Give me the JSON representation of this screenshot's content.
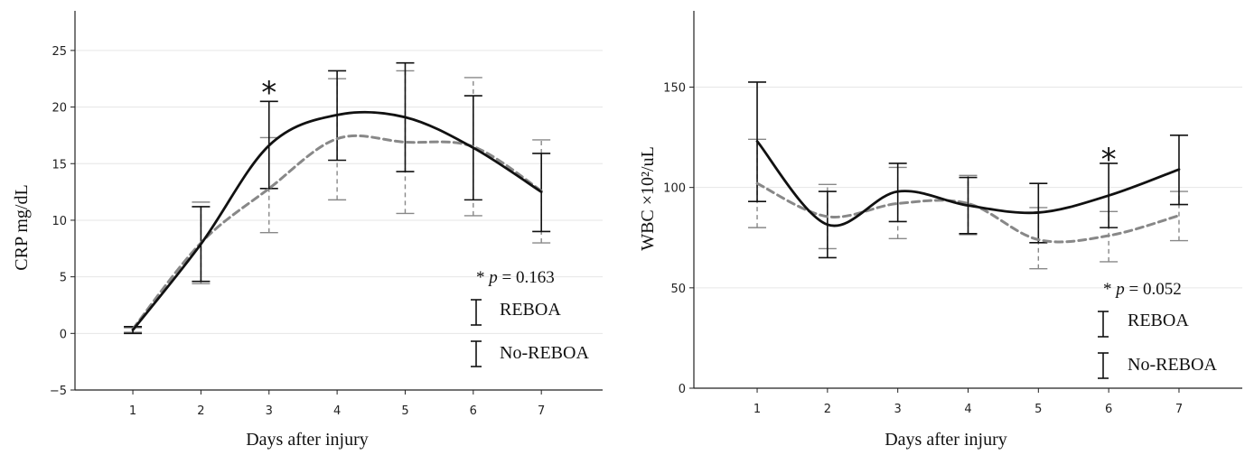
{
  "chart_data": [
    {
      "type": "line",
      "xlabel": "Days after injury",
      "ylabel": "CRP mg/dL",
      "xlim": [
        0.15,
        7.9
      ],
      "ylim": [
        -5,
        28.5
      ],
      "xticks": [
        1,
        2,
        3,
        4,
        5,
        6,
        7
      ],
      "yticks": [
        -5,
        0,
        5,
        10,
        15,
        20,
        25
      ],
      "x": [
        1,
        2,
        3,
        4,
        5,
        6,
        7
      ],
      "grid": "horizontal",
      "series": [
        {
          "name": "REBOA",
          "style": "solid",
          "color": "#111111",
          "values": [
            0.3,
            7.9,
            16.6,
            19.3,
            19.1,
            16.4,
            12.5
          ],
          "err_low": [
            0.0,
            4.6,
            12.8,
            15.3,
            14.3,
            11.8,
            9.0
          ],
          "err_high": [
            0.6,
            11.2,
            20.5,
            23.2,
            23.9,
            21.0,
            15.9
          ]
        },
        {
          "name": "No-REBOA",
          "style": "dashed",
          "color": "#888888",
          "values": [
            0.4,
            8.0,
            12.8,
            17.2,
            16.9,
            16.5,
            12.6
          ],
          "err_low": [
            0.1,
            4.4,
            8.9,
            11.8,
            10.6,
            10.4,
            8.0
          ],
          "err_high": [
            0.5,
            11.6,
            17.3,
            22.5,
            23.2,
            22.6,
            17.1
          ]
        }
      ],
      "annotations": [
        {
          "text": "*",
          "x": 3,
          "y": 21.8
        }
      ],
      "p_note": {
        "prefix": "* ",
        "p": "p",
        "suffix": " = 0.163"
      },
      "legend": {
        "placement": "bottom-right",
        "items": [
          "REBOA",
          "No-REBOA"
        ]
      }
    },
    {
      "type": "line",
      "xlabel": "Days after injury",
      "ylabel": "WBC ×10²/uL",
      "xlim": [
        0.1,
        7.9
      ],
      "ylim": [
        0,
        188
      ],
      "xticks": [
        1,
        2,
        3,
        4,
        5,
        6,
        7
      ],
      "yticks": [
        0,
        50,
        100,
        150
      ],
      "x": [
        1,
        2,
        3,
        4,
        5,
        6,
        7
      ],
      "grid": "horizontal",
      "series": [
        {
          "name": "REBOA",
          "style": "solid",
          "color": "#111111",
          "values": [
            123,
            81.5,
            98,
            91,
            87.5,
            96,
            109
          ],
          "err_low": [
            93,
            65,
            83,
            77,
            72.5,
            80,
            91.5
          ],
          "err_high": [
            152.5,
            98,
            112,
            105,
            102,
            112,
            126
          ]
        },
        {
          "name": "No-REBOA",
          "style": "dashed",
          "color": "#888888",
          "values": [
            102,
            85.5,
            92,
            92,
            74,
            76,
            86
          ],
          "err_low": [
            80,
            69.5,
            74.5,
            76.5,
            59.5,
            63,
            73.5
          ],
          "err_high": [
            124,
            101.5,
            110,
            106,
            90,
            88,
            98
          ]
        }
      ],
      "annotations": [
        {
          "text": "*",
          "x": 6,
          "y": 117
        }
      ],
      "p_note": {
        "prefix": "* ",
        "p": "p",
        "suffix": " = 0.052"
      },
      "legend": {
        "placement": "bottom-right",
        "items": [
          "REBOA",
          "No-REBOA"
        ]
      }
    }
  ]
}
